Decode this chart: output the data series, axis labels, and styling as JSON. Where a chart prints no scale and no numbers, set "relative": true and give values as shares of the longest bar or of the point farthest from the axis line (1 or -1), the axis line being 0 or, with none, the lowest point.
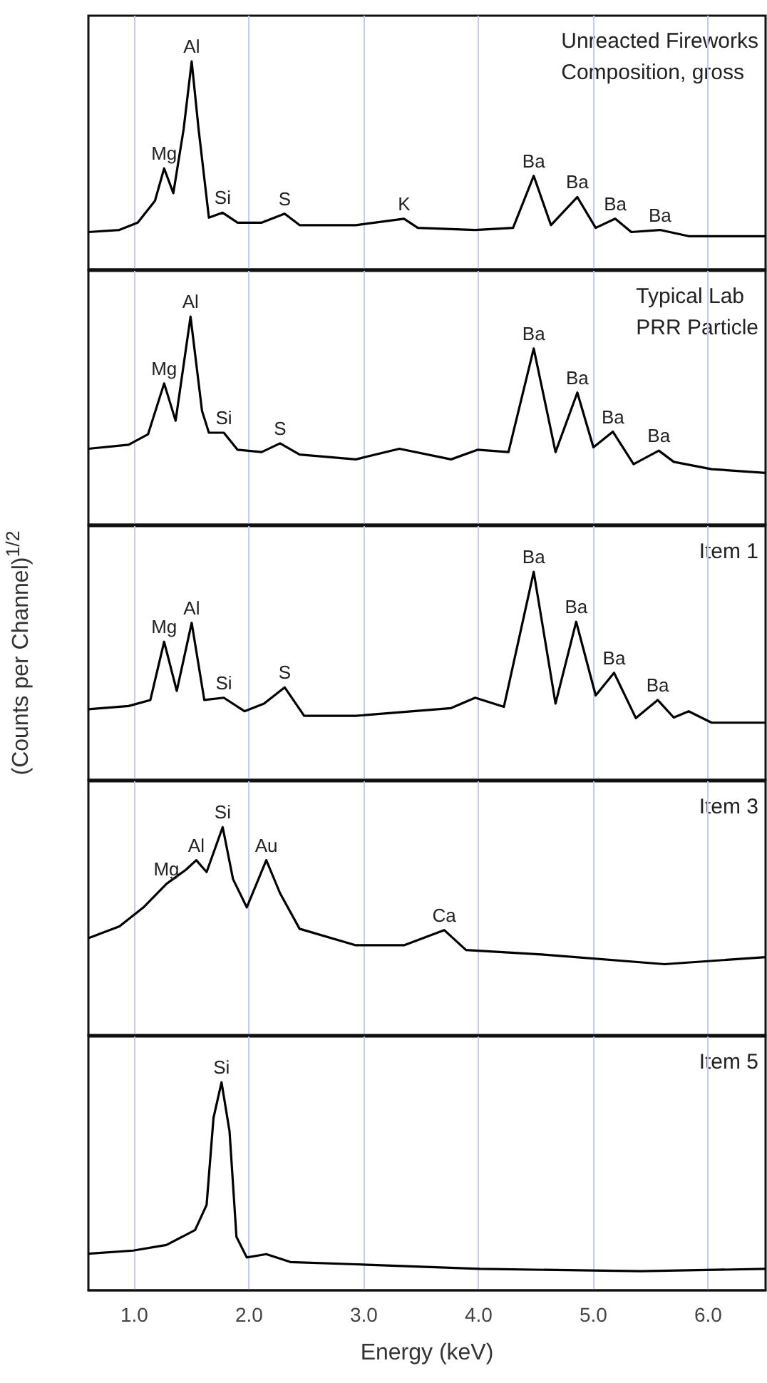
{
  "chart_data": [
    {
      "type": "line",
      "title": "Unreacted Fireworks\nComposition, gross",
      "relative": true,
      "grid": "x",
      "tick_labels": false,
      "xlim": [
        0.6,
        6.5
      ],
      "xticks": [
        {
          "value": 1,
          "label": null
        },
        {
          "value": 2,
          "label": null
        },
        {
          "value": 3,
          "label": null
        },
        {
          "value": 4,
          "label": null
        },
        {
          "value": 5,
          "label": null
        },
        {
          "value": 6,
          "label": null
        }
      ],
      "x": [
        0.6,
        0.87,
        1.03,
        1.18,
        1.26,
        1.34,
        1.43,
        1.5,
        1.56,
        1.65,
        1.77,
        1.9,
        2.11,
        2.31,
        2.44,
        2.93,
        3.35,
        3.47,
        3.97,
        4.3,
        4.48,
        4.63,
        4.86,
        5.02,
        5.19,
        5.33,
        5.58,
        5.83,
        6.5
      ],
      "series": [
        {
          "color": "#000000",
          "values": [
            0.18,
            0.19,
            0.225,
            0.33,
            0.486,
            0.367,
            0.675,
            1,
            0.675,
            0.249,
            0.273,
            0.225,
            0.225,
            0.268,
            0.213,
            0.213,
            0.244,
            0.2,
            0.19,
            0.2,
            0.45,
            0.213,
            0.348,
            0.2,
            0.244,
            0.18,
            0.19,
            0.16,
            0.16
          ]
        }
      ],
      "annotations": [
        {
          "text": "Mg",
          "x": 1.26,
          "y": 0.486
        },
        {
          "text": "Al",
          "x": 1.5,
          "y": 1
        },
        {
          "text": "Si",
          "x": 1.77,
          "y": 0.273
        },
        {
          "text": "S",
          "x": 2.31,
          "y": 0.268
        },
        {
          "text": "K",
          "x": 3.35,
          "y": 0.244
        },
        {
          "text": "Ba",
          "x": 4.48,
          "y": 0.45
        },
        {
          "text": "Ba",
          "x": 4.86,
          "y": 0.348
        },
        {
          "text": "Ba",
          "x": 5.19,
          "y": 0.244
        },
        {
          "text": "Ba",
          "x": 5.58,
          "y": 0.19
        }
      ]
    },
    {
      "type": "line",
      "title": "Typical Lab\nPRR Particle",
      "relative": true,
      "grid": "x",
      "tick_labels": false,
      "xlim": [
        0.6,
        6.5
      ],
      "xticks": [
        {
          "value": 1,
          "label": null
        },
        {
          "value": 2,
          "label": null
        },
        {
          "value": 3,
          "label": null
        },
        {
          "value": 4,
          "label": null
        },
        {
          "value": 5,
          "label": null
        },
        {
          "value": 6,
          "label": null
        }
      ],
      "x": [
        0.6,
        0.95,
        1.12,
        1.26,
        1.36,
        1.49,
        1.59,
        1.65,
        1.78,
        1.9,
        2.11,
        2.27,
        2.44,
        2.93,
        3.31,
        3.76,
        3.99,
        4.26,
        4.48,
        4.67,
        4.86,
        5.0,
        5.17,
        5.35,
        5.57,
        5.7,
        6.03,
        6.5
      ],
      "series": [
        {
          "color": "#000000",
          "values": [
            0.365,
            0.384,
            0.435,
            0.679,
            0.5,
            1,
            0.547,
            0.442,
            0.442,
            0.36,
            0.349,
            0.391,
            0.337,
            0.314,
            0.365,
            0.314,
            0.36,
            0.349,
            0.847,
            0.349,
            0.635,
            0.372,
            0.447,
            0.291,
            0.356,
            0.302,
            0.267,
            0.249
          ]
        }
      ],
      "annotations": [
        {
          "text": "Mg",
          "x": 1.26,
          "y": 0.679
        },
        {
          "text": "Al",
          "x": 1.49,
          "y": 1
        },
        {
          "text": "Si",
          "x": 1.78,
          "y": 0.442
        },
        {
          "text": "S",
          "x": 2.27,
          "y": 0.391
        },
        {
          "text": "Ba",
          "x": 4.48,
          "y": 0.847
        },
        {
          "text": "Ba",
          "x": 4.86,
          "y": 0.635
        },
        {
          "text": "Ba",
          "x": 5.17,
          "y": 0.447
        },
        {
          "text": "Ba",
          "x": 5.57,
          "y": 0.356
        }
      ]
    },
    {
      "type": "line",
      "title": "Item 1",
      "ylabel": "(Counts per Channel)$^{1/2}$",
      "relative": true,
      "grid": "x",
      "tick_labels": false,
      "xlim": [
        0.6,
        6.5
      ],
      "xticks": [
        {
          "value": 1,
          "label": null
        },
        {
          "value": 2,
          "label": null
        },
        {
          "value": 3,
          "label": null
        },
        {
          "value": 4,
          "label": null
        },
        {
          "value": 5,
          "label": null
        },
        {
          "value": 6,
          "label": null
        }
      ],
      "x": [
        0.6,
        0.95,
        1.14,
        1.26,
        1.37,
        1.5,
        1.61,
        1.78,
        1.96,
        2.13,
        2.31,
        2.48,
        2.93,
        3.76,
        3.97,
        4.22,
        4.48,
        4.67,
        4.85,
        5.02,
        5.18,
        5.37,
        5.56,
        5.7,
        5.83,
        6.03,
        6.5
      ],
      "series": [
        {
          "color": "#000000",
          "values": [
            0.34,
            0.355,
            0.384,
            0.664,
            0.428,
            0.755,
            0.384,
            0.395,
            0.33,
            0.367,
            0.445,
            0.308,
            0.308,
            0.345,
            0.395,
            0.351,
            1,
            0.367,
            0.76,
            0.406,
            0.515,
            0.297,
            0.384,
            0.3,
            0.33,
            0.275,
            0.275
          ]
        }
      ],
      "annotations": [
        {
          "text": "Mg",
          "x": 1.26,
          "y": 0.664
        },
        {
          "text": "Al",
          "x": 1.5,
          "y": 0.755
        },
        {
          "text": "Si",
          "x": 1.78,
          "y": 0.395
        },
        {
          "text": "S",
          "x": 2.31,
          "y": 0.445
        },
        {
          "text": "Ba",
          "x": 4.48,
          "y": 1
        },
        {
          "text": "Ba",
          "x": 4.85,
          "y": 0.76
        },
        {
          "text": "Ba",
          "x": 5.18,
          "y": 0.515
        },
        {
          "text": "Ba",
          "x": 5.56,
          "y": 0.384
        }
      ]
    },
    {
      "type": "line",
      "title": "Item 3",
      "relative": true,
      "grid": "x",
      "tick_labels": false,
      "xlim": [
        0.6,
        6.5
      ],
      "xticks": [
        {
          "value": 1,
          "label": null
        },
        {
          "value": 2,
          "label": null
        },
        {
          "value": 3,
          "label": null
        },
        {
          "value": 4,
          "label": null
        },
        {
          "value": 5,
          "label": null
        },
        {
          "value": 6,
          "label": null
        }
      ],
      "x": [
        0.6,
        0.87,
        1.08,
        1.28,
        1.45,
        1.54,
        1.63,
        1.77,
        1.86,
        1.98,
        2.15,
        2.27,
        2.44,
        2.93,
        3.35,
        3.7,
        3.89,
        4.59,
        5.62,
        6.5
      ],
      "series": [
        {
          "color": "#000000",
          "values": [
            0.466,
            0.523,
            0.614,
            0.727,
            0.795,
            0.841,
            0.784,
            1,
            0.75,
            0.614,
            0.841,
            0.682,
            0.511,
            0.432,
            0.432,
            0.505,
            0.409,
            0.386,
            0.341,
            0.375
          ]
        }
      ],
      "annotations": [
        {
          "text": "Mg",
          "x": 1.28,
          "y": 0.727
        },
        {
          "text": "Al",
          "x": 1.54,
          "y": 0.841
        },
        {
          "text": "Si",
          "x": 1.77,
          "y": 1
        },
        {
          "text": "Au",
          "x": 2.15,
          "y": 0.841
        },
        {
          "text": "Ca",
          "x": 3.7,
          "y": 0.505
        }
      ]
    },
    {
      "type": "line",
      "title": "Item 5",
      "xlabel": "Energy (keV)",
      "relative": true,
      "grid": "x",
      "tick_labels": "x",
      "xlim": [
        0.6,
        6.5
      ],
      "xticks": [
        {
          "value": 1,
          "label": "1.0"
        },
        {
          "value": 2,
          "label": "2.0"
        },
        {
          "value": 3,
          "label": "3.0"
        },
        {
          "value": 4,
          "label": "4.0"
        },
        {
          "value": 5,
          "label": "5.0"
        },
        {
          "value": 6,
          "label": "6.0"
        }
      ],
      "x": [
        0.6,
        0.99,
        1.28,
        1.53,
        1.63,
        1.69,
        1.76,
        1.83,
        1.89,
        1.98,
        2.15,
        2.36,
        2.93,
        4.01,
        5.41,
        6.5
      ],
      "series": [
        {
          "color": "#000000",
          "values": [
            0.176,
            0.191,
            0.218,
            0.29,
            0.411,
            0.829,
            1,
            0.763,
            0.257,
            0.158,
            0.174,
            0.136,
            0.125,
            0.103,
            0.092,
            0.103
          ]
        }
      ],
      "annotations": [
        {
          "text": "Si",
          "x": 1.76,
          "y": 1
        }
      ]
    }
  ]
}
